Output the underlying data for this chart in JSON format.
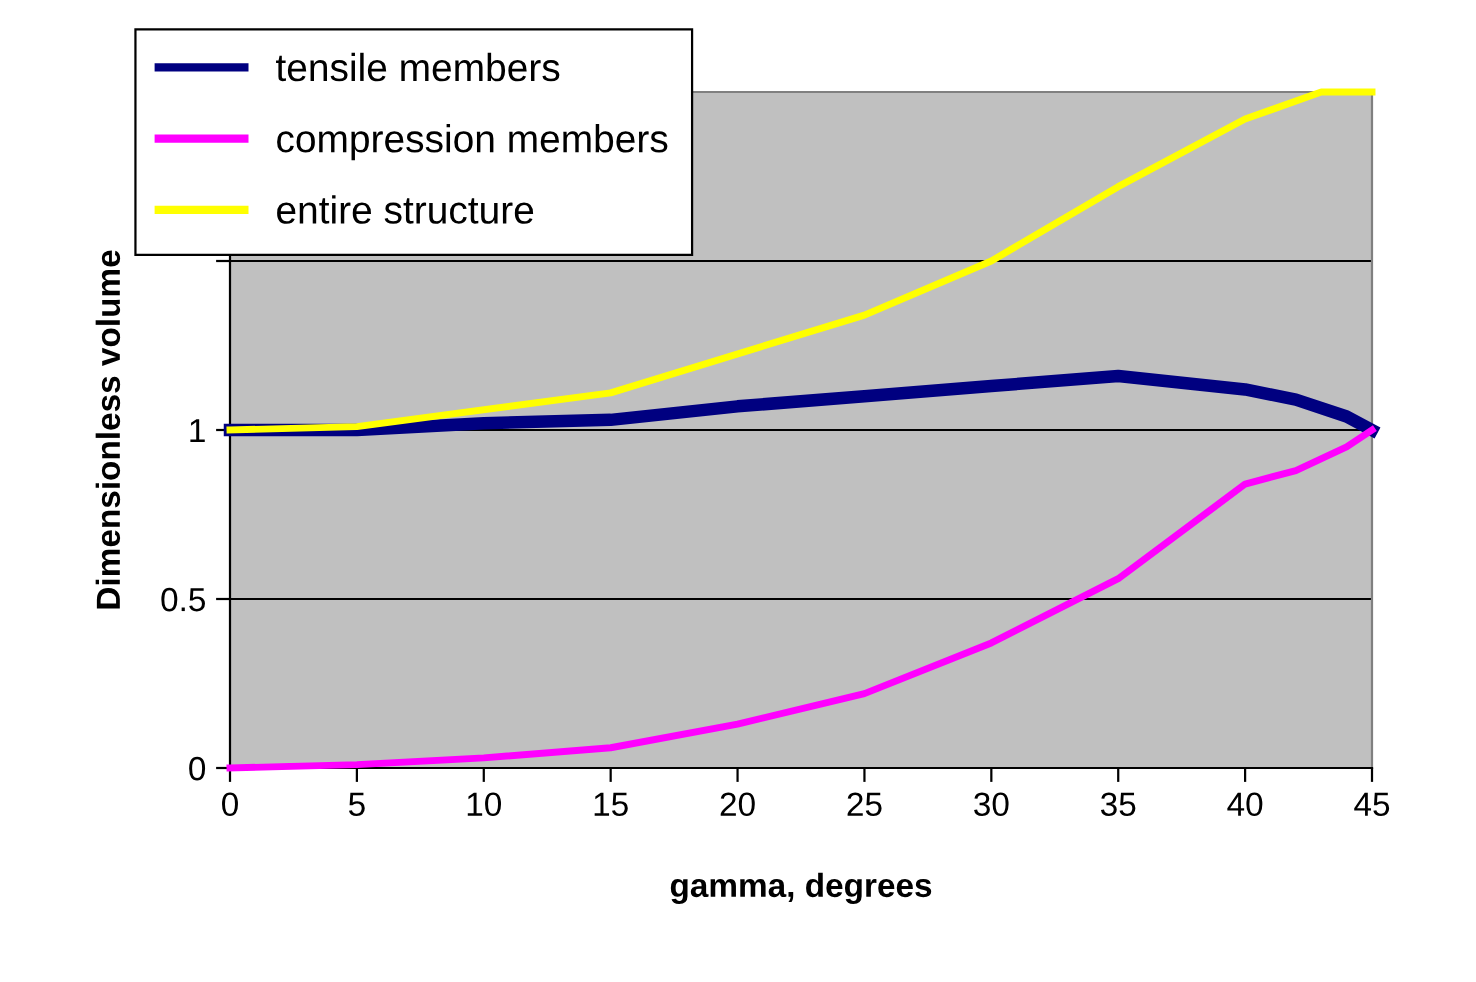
{
  "chart_data": {
    "type": "line",
    "xlabel": "gamma, degrees",
    "ylabel": "Dimensionless volume",
    "x": [
      0,
      5,
      10,
      15,
      20,
      25,
      30,
      35,
      40,
      42,
      44,
      45
    ],
    "series": [
      {
        "name": "tensile members",
        "color": "#000080",
        "values": [
          1.0,
          1.0,
          1.02,
          1.03,
          1.07,
          1.1,
          1.13,
          1.16,
          1.12,
          1.09,
          1.04,
          1.0
        ]
      },
      {
        "name": "compression members",
        "color": "#ff00ff",
        "values": [
          0.0,
          0.01,
          0.03,
          0.06,
          0.13,
          0.22,
          0.37,
          0.56,
          0.84,
          0.88,
          0.95,
          1.0
        ]
      },
      {
        "name": "entire structure",
        "color": "#ffff00",
        "x": [
          0,
          5,
          15,
          25,
          30,
          35,
          40,
          43,
          45
        ],
        "values": [
          1.0,
          1.01,
          1.11,
          1.34,
          1.5,
          1.72,
          1.92,
          2.0,
          2.0
        ]
      }
    ],
    "xlim": [
      0,
      45
    ],
    "xticks": [
      0,
      5,
      10,
      15,
      20,
      25,
      30,
      35,
      40,
      45
    ],
    "ylim": [
      0,
      2
    ],
    "yticks": [
      0,
      0.5,
      1,
      {
        "value": 1.5,
        "label": null
      },
      {
        "value": 2,
        "label": null
      }
    ],
    "grid": "y",
    "legend": "top left",
    "marker": "none",
    "line_style": "solid"
  }
}
